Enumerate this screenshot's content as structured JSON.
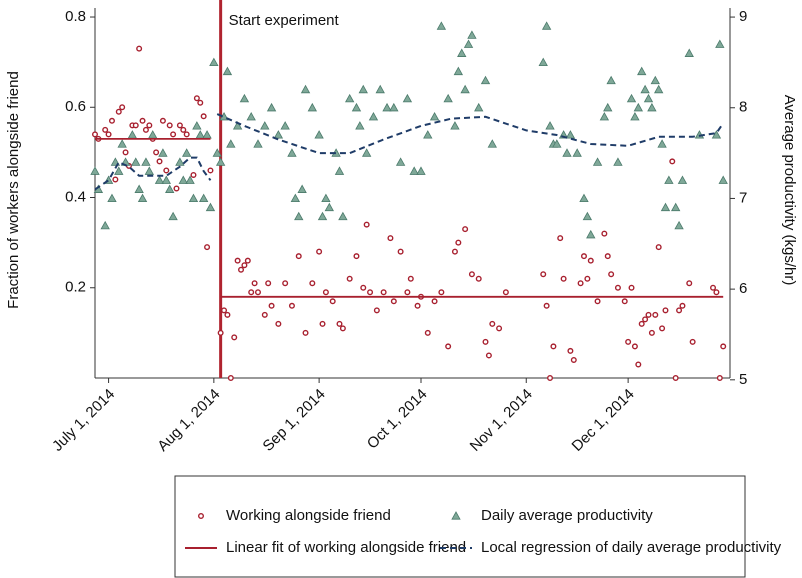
{
  "chart_data": {
    "type": "scatter",
    "ylabel": "Fraction of workers alongside friend",
    "y2label": "Average productivity (kgs/hr)",
    "xlim": [
      "2014-06-27",
      "2014-12-31"
    ],
    "xticks": [
      {
        "value": "2014-07-01",
        "label": "July 1, 2014"
      },
      {
        "value": "2014-08-01",
        "label": "Aug 1, 2014"
      },
      {
        "value": "2014-09-01",
        "label": "Sep 1, 2014"
      },
      {
        "value": "2014-10-01",
        "label": "Oct 1, 2014"
      },
      {
        "value": "2014-11-01",
        "label": "Nov 1, 2014"
      },
      {
        "value": "2014-12-01",
        "label": "Dec 1, 2014"
      }
    ],
    "ylim": [
      0,
      0.82
    ],
    "yticks": [
      0.2,
      0.4,
      0.6,
      0.8
    ],
    "y2lim": [
      5.02,
      9.1
    ],
    "y2ticks": [
      5,
      6,
      7,
      8,
      9
    ],
    "annotation": {
      "text": "Start experiment",
      "x": "2014-08-03",
      "color": "#b0232f"
    },
    "series": [
      {
        "name": "Working alongside friend",
        "marker": "circle",
        "color": "#a8202f",
        "x": [
          "2014-06-27",
          "2014-06-28",
          "2014-06-30",
          "2014-07-01",
          "2014-07-02",
          "2014-07-03",
          "2014-07-04",
          "2014-07-05",
          "2014-07-06",
          "2014-07-07",
          "2014-07-08",
          "2014-07-09",
          "2014-07-10",
          "2014-07-11",
          "2014-07-12",
          "2014-07-13",
          "2014-07-14",
          "2014-07-15",
          "2014-07-16",
          "2014-07-17",
          "2014-07-18",
          "2014-07-19",
          "2014-07-20",
          "2014-07-21",
          "2014-07-22",
          "2014-07-23",
          "2014-07-24",
          "2014-07-26",
          "2014-07-27",
          "2014-07-28",
          "2014-07-29",
          "2014-07-30",
          "2014-07-31",
          "2014-08-03",
          "2014-08-04",
          "2014-08-05",
          "2014-08-06",
          "2014-08-07",
          "2014-08-08",
          "2014-08-09",
          "2014-08-10",
          "2014-08-11",
          "2014-08-12",
          "2014-08-13",
          "2014-08-14",
          "2014-08-16",
          "2014-08-17",
          "2014-08-18",
          "2014-08-20",
          "2014-08-22",
          "2014-08-24",
          "2014-08-26",
          "2014-08-28",
          "2014-08-30",
          "2014-09-01",
          "2014-09-02",
          "2014-09-03",
          "2014-09-05",
          "2014-09-07",
          "2014-09-08",
          "2014-09-10",
          "2014-09-12",
          "2014-09-14",
          "2014-09-15",
          "2014-09-16",
          "2014-09-18",
          "2014-09-20",
          "2014-09-22",
          "2014-09-23",
          "2014-09-25",
          "2014-09-27",
          "2014-09-28",
          "2014-09-30",
          "2014-10-01",
          "2014-10-03",
          "2014-10-05",
          "2014-10-07",
          "2014-10-09",
          "2014-10-11",
          "2014-10-12",
          "2014-10-14",
          "2014-10-16",
          "2014-10-18",
          "2014-10-20",
          "2014-10-21",
          "2014-10-22",
          "2014-10-24",
          "2014-10-26",
          "2014-11-06",
          "2014-11-07",
          "2014-11-08",
          "2014-11-09",
          "2014-11-11",
          "2014-11-12",
          "2014-11-14",
          "2014-11-15",
          "2014-11-17",
          "2014-11-18",
          "2014-11-19",
          "2014-11-20",
          "2014-11-22",
          "2014-11-24",
          "2014-11-25",
          "2014-11-26",
          "2014-11-28",
          "2014-11-30",
          "2014-12-01",
          "2014-12-02",
          "2014-12-03",
          "2014-12-04",
          "2014-12-05",
          "2014-12-06",
          "2014-12-07",
          "2014-12-08",
          "2014-12-09",
          "2014-12-10",
          "2014-12-11",
          "2014-12-12",
          "2014-12-14",
          "2014-12-15",
          "2014-12-16",
          "2014-12-17",
          "2014-12-19",
          "2014-12-20",
          "2014-12-26",
          "2014-12-27",
          "2014-12-28",
          "2014-12-29"
        ],
        "values": [
          0.54,
          0.53,
          0.55,
          0.54,
          0.57,
          0.44,
          0.59,
          0.6,
          0.5,
          0.47,
          0.56,
          0.56,
          0.73,
          0.57,
          0.55,
          0.56,
          0.53,
          0.5,
          0.48,
          0.57,
          0.46,
          0.56,
          0.54,
          0.42,
          0.56,
          0.55,
          0.54,
          0.45,
          0.62,
          0.61,
          0.58,
          0.29,
          0.46,
          0.1,
          0.15,
          0.14,
          0.0,
          0.09,
          0.26,
          0.24,
          0.25,
          0.26,
          0.19,
          0.21,
          0.19,
          0.14,
          0.21,
          0.16,
          0.12,
          0.21,
          0.16,
          0.27,
          0.1,
          0.21,
          0.28,
          0.12,
          0.19,
          0.17,
          0.12,
          0.11,
          0.22,
          0.27,
          0.2,
          0.34,
          0.19,
          0.15,
          0.19,
          0.31,
          0.17,
          0.28,
          0.19,
          0.22,
          0.16,
          0.18,
          0.1,
          0.17,
          0.19,
          0.07,
          0.28,
          0.3,
          0.33,
          0.23,
          0.22,
          0.08,
          0.05,
          0.12,
          0.11,
          0.19,
          0.23,
          0.16,
          0.0,
          0.07,
          0.31,
          0.22,
          0.06,
          0.04,
          0.21,
          0.27,
          0.22,
          0.26,
          0.17,
          0.32,
          0.27,
          0.23,
          0.2,
          0.17,
          0.08,
          0.2,
          0.07,
          0.03,
          0.12,
          0.13,
          0.14,
          0.1,
          0.14,
          0.29,
          0.11,
          0.15,
          0.48,
          0.0,
          0.15,
          0.16,
          0.21,
          0.08,
          0.2,
          0.19,
          0.0,
          0.07
        ]
      },
      {
        "name": "Daily average productivity",
        "marker": "triangle",
        "axis": "y2",
        "color": "#7fa898",
        "x": [
          "2014-06-27",
          "2014-06-28",
          "2014-06-30",
          "2014-07-01",
          "2014-07-02",
          "2014-07-03",
          "2014-07-04",
          "2014-07-05",
          "2014-07-06",
          "2014-07-08",
          "2014-07-09",
          "2014-07-10",
          "2014-07-11",
          "2014-07-12",
          "2014-07-13",
          "2014-07-14",
          "2014-07-16",
          "2014-07-17",
          "2014-07-18",
          "2014-07-19",
          "2014-07-20",
          "2014-07-22",
          "2014-07-23",
          "2014-07-24",
          "2014-07-25",
          "2014-07-26",
          "2014-07-27",
          "2014-07-28",
          "2014-07-29",
          "2014-07-30",
          "2014-07-31",
          "2014-08-01",
          "2014-08-02",
          "2014-08-03",
          "2014-08-04",
          "2014-08-05",
          "2014-08-06",
          "2014-08-08",
          "2014-08-10",
          "2014-08-12",
          "2014-08-14",
          "2014-08-16",
          "2014-08-18",
          "2014-08-20",
          "2014-08-22",
          "2014-08-24",
          "2014-08-25",
          "2014-08-26",
          "2014-08-27",
          "2014-08-28",
          "2014-08-30",
          "2014-09-01",
          "2014-09-02",
          "2014-09-03",
          "2014-09-04",
          "2014-09-06",
          "2014-09-07",
          "2014-09-08",
          "2014-09-10",
          "2014-09-12",
          "2014-09-13",
          "2014-09-14",
          "2014-09-15",
          "2014-09-17",
          "2014-09-19",
          "2014-09-21",
          "2014-09-23",
          "2014-09-25",
          "2014-09-27",
          "2014-09-29",
          "2014-10-01",
          "2014-10-03",
          "2014-10-05",
          "2014-10-07",
          "2014-10-09",
          "2014-10-11",
          "2014-10-12",
          "2014-10-13",
          "2014-10-14",
          "2014-10-15",
          "2014-10-16",
          "2014-10-18",
          "2014-10-20",
          "2014-10-22",
          "2014-11-06",
          "2014-11-07",
          "2014-11-08",
          "2014-11-09",
          "2014-11-10",
          "2014-11-12",
          "2014-11-13",
          "2014-11-14",
          "2014-11-16",
          "2014-11-18",
          "2014-11-19",
          "2014-11-20",
          "2014-11-22",
          "2014-11-24",
          "2014-11-25",
          "2014-11-26",
          "2014-11-28",
          "2014-12-02",
          "2014-12-03",
          "2014-12-04",
          "2014-12-05",
          "2014-12-06",
          "2014-12-07",
          "2014-12-08",
          "2014-12-09",
          "2014-12-10",
          "2014-12-11",
          "2014-12-12",
          "2014-12-13",
          "2014-12-15",
          "2014-12-16",
          "2014-12-17",
          "2014-12-19",
          "2014-12-22",
          "2014-12-27",
          "2014-12-28",
          "2014-12-29"
        ],
        "values": [
          7.3,
          7.1,
          6.7,
          7.2,
          7.0,
          7.4,
          7.3,
          7.6,
          7.4,
          7.7,
          7.4,
          7.1,
          7.0,
          7.4,
          7.3,
          7.7,
          7.2,
          7.5,
          7.2,
          7.1,
          6.8,
          7.4,
          7.2,
          7.5,
          7.2,
          7.0,
          7.8,
          7.7,
          7.0,
          7.7,
          6.9,
          8.5,
          7.5,
          7.4,
          7.9,
          8.4,
          7.6,
          7.8,
          8.1,
          7.9,
          7.6,
          7.8,
          8.0,
          7.7,
          7.8,
          7.5,
          7.0,
          6.8,
          7.1,
          8.2,
          8.0,
          7.7,
          6.8,
          7.0,
          6.9,
          7.5,
          7.3,
          6.8,
          8.1,
          8.0,
          7.8,
          8.2,
          7.5,
          7.9,
          8.2,
          8.0,
          8.0,
          7.4,
          8.1,
          7.3,
          7.3,
          7.7,
          7.9,
          8.9,
          8.1,
          7.8,
          8.4,
          8.6,
          8.2,
          8.7,
          8.8,
          8.0,
          8.3,
          7.6,
          8.5,
          8.9,
          7.8,
          7.6,
          7.6,
          7.7,
          7.5,
          7.7,
          7.5,
          7.0,
          6.8,
          6.6,
          7.4,
          7.9,
          8.0,
          8.3,
          7.4,
          8.1,
          7.9,
          8.0,
          8.4,
          8.2,
          8.1,
          8.0,
          8.3,
          8.2,
          7.6,
          6.9,
          7.2,
          6.9,
          6.7,
          7.2,
          8.6,
          7.7,
          7.7,
          8.7,
          7.2
        ]
      },
      {
        "name": "Linear fit of working alongside friend",
        "line": "solid",
        "color": "#a8202f",
        "x": [
          "2014-06-27",
          "2014-07-31",
          "2014-08-01",
          "2014-08-03",
          "2014-12-29"
        ],
        "values": [
          0.53,
          0.53,
          null,
          0.18,
          0.18
        ]
      },
      {
        "name": "Local regression of daily average productivity",
        "line": "dashed",
        "axis": "y2",
        "color": "#1f3c68",
        "x": [
          "2014-06-27",
          "2014-07-01",
          "2014-07-04",
          "2014-07-07",
          "2014-07-10",
          "2014-07-14",
          "2014-07-18",
          "2014-07-22",
          "2014-07-25",
          "2014-07-27",
          "2014-07-29",
          "2014-07-31",
          "2014-08-01",
          "2014-08-02",
          "2014-08-10",
          "2014-08-20",
          "2014-09-01",
          "2014-09-10",
          "2014-09-20",
          "2014-10-01",
          "2014-10-10",
          "2014-10-20",
          "2014-11-01",
          "2014-11-10",
          "2014-11-20",
          "2014-12-01",
          "2014-12-10",
          "2014-12-20",
          "2014-12-27",
          "2014-12-29"
        ],
        "values": [
          7.1,
          7.2,
          7.4,
          7.35,
          7.25,
          7.25,
          7.25,
          7.35,
          7.45,
          7.45,
          7.3,
          7.2,
          null,
          7.93,
          7.8,
          7.65,
          7.5,
          7.5,
          7.65,
          7.8,
          7.88,
          7.9,
          7.75,
          7.7,
          7.6,
          7.58,
          7.68,
          7.68,
          7.72,
          7.83
        ]
      }
    ]
  }
}
